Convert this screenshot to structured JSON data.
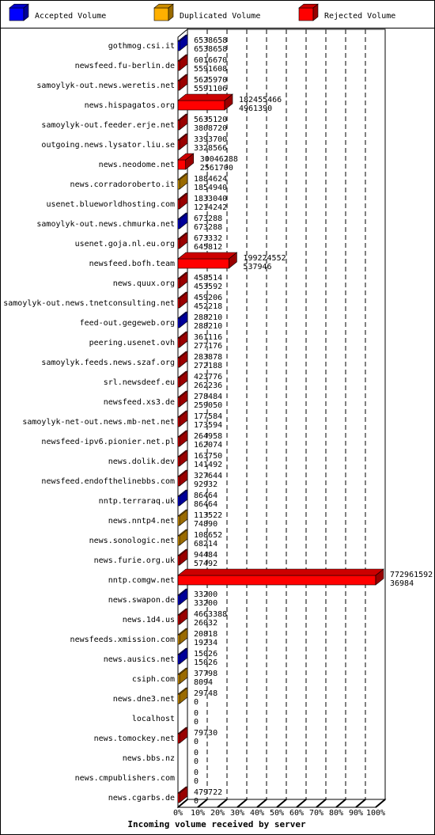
{
  "chart_data": {
    "type": "bar3d",
    "x_label": "Incoming volume received by server",
    "legend": [
      {
        "name": "Accepted Volume",
        "color": "#0000ff"
      },
      {
        "name": "Duplicated Volume",
        "color": "#ffb000"
      },
      {
        "name": "Rejected Volume",
        "color": "#ff0000"
      }
    ],
    "categories": [
      "gothmog.csi.it",
      "newsfeed.fu-berlin.de",
      "samoylyk-out.news.weretis.net",
      "news.hispagatos.org",
      "samoylyk-out.feeder.erje.net",
      "outgoing.news.lysator.liu.se",
      "news.neodome.net",
      "news.corradoroberto.it",
      "usenet.blueworldhosting.com",
      "samoylyk-out.news.chmurka.net",
      "usenet.goja.nl.eu.org",
      "newsfeed.bofh.team",
      "news.quux.org",
      "samoylyk-out.news.tnetconsulting.net",
      "feed-out.gegeweb.org",
      "peering.usenet.ovh",
      "samoylyk.feeds.news.szaf.org",
      "srl.newsdeef.eu",
      "newsfeed.xs3.de",
      "samoylyk-net-out.news.mb-net.net",
      "newsfeed-ipv6.pionier.net.pl",
      "news.dolik.dev",
      "newsfeed.endofthelinebbs.com",
      "nntp.terraraq.uk",
      "news.nntp4.net",
      "news.sonologic.net",
      "news.furie.org.uk",
      "nntp.comgw.net",
      "news.swapon.de",
      "news.1d4.us",
      "newsfeeds.xmission.com",
      "news.ausics.net",
      "csiph.com",
      "news.dne3.net",
      "localhost",
      "news.tomockey.net",
      "news.bbs.nz",
      "news.cmpublishers.com",
      "news.cgarbs.de"
    ],
    "series": [
      {
        "values": [
          6538658,
          6016670,
          5625970,
          182455466,
          5635120,
          3393700,
          30046288,
          1884624,
          1833040,
          673288,
          673332,
          199224552,
          458514,
          459206,
          288210,
          361116,
          283878,
          423776,
          278484,
          177584,
          264958,
          163750,
          327644,
          86464,
          113522,
          108652,
          94484,
          772961592,
          33200,
          4663388,
          20818,
          15026,
          37798,
          29748,
          0,
          79730,
          0,
          0,
          479722
        ]
      },
      {
        "values": [
          6538658,
          5591608,
          5591106,
          4961390,
          3808720,
          3328566,
          2561700,
          1854940,
          1214242,
          673288,
          645812,
          537946,
          453592,
          452218,
          288210,
          277176,
          272188,
          262236,
          259050,
          173594,
          162074,
          141492,
          92932,
          86464,
          74890,
          68214,
          57492,
          36984,
          33200,
          26032,
          19234,
          15026,
          8094,
          0,
          0,
          0,
          0,
          0,
          0
        ]
      }
    ],
    "colors": [
      "#0000ff",
      "#ff0000",
      "#ff0000",
      "#ff0000",
      "#ff0000",
      "#ff0000",
      "#ff0000",
      "#ffb000",
      "#ff0000",
      "#0000ff",
      "#ff0000",
      "#ff0000",
      "#ff0000",
      "#ff0000",
      "#0000ff",
      "#ff0000",
      "#ff0000",
      "#ff0000",
      "#ff0000",
      "#ff0000",
      "#ff0000",
      "#ff0000",
      "#ff0000",
      "#0000ff",
      "#ffb000",
      "#ffb000",
      "#ff0000",
      "#ff0000",
      "#0000ff",
      "#ff0000",
      "#ffb000",
      "#0000ff",
      "#ffb000",
      "#ffb000",
      null,
      "#ff0000",
      null,
      null,
      "#ff0000"
    ],
    "xlim": [
      0,
      100
    ],
    "xticks": [
      {
        "value": 0,
        "label": "0%"
      },
      {
        "value": 10,
        "label": "10%"
      },
      {
        "value": 20,
        "label": "20%"
      },
      {
        "value": 30,
        "label": "30%"
      },
      {
        "value": 40,
        "label": "40%"
      },
      {
        "value": 50,
        "label": "50%"
      },
      {
        "value": 60,
        "label": "60%"
      },
      {
        "value": 70,
        "label": "70%"
      },
      {
        "value": 80,
        "label": "80%"
      },
      {
        "value": 90,
        "label": "90%"
      },
      {
        "value": 100,
        "label": "100%"
      }
    ]
  }
}
